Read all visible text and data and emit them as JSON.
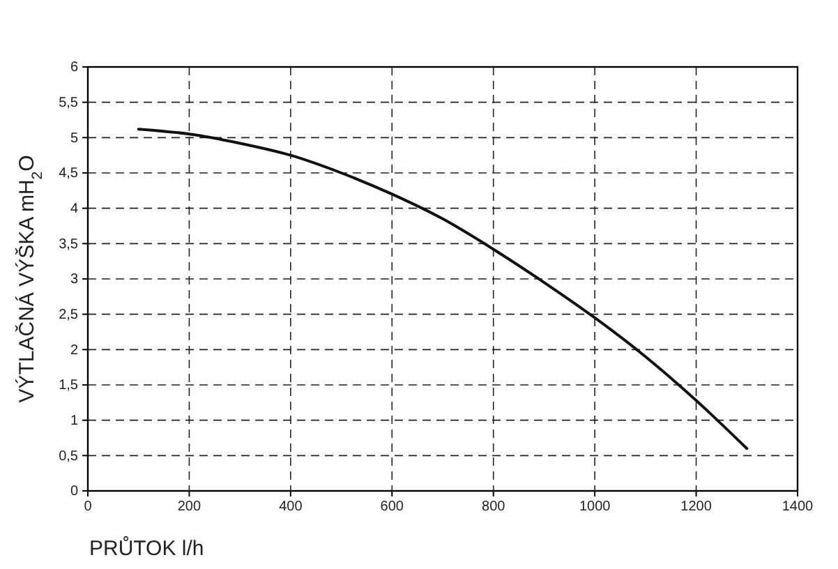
{
  "chart_data": {
    "type": "line",
    "xlabel": "PRŮTOK l/h",
    "ylabel": "VÝTLAČNÁ VÝŠKA mH$_{2}$O",
    "x": [
      100,
      200,
      300,
      400,
      500,
      600,
      700,
      800,
      900,
      1000,
      1100,
      1200,
      1300
    ],
    "series": [
      {
        "color": "#111111",
        "values": [
          5.12,
          5.05,
          4.92,
          4.75,
          4.5,
          4.2,
          3.85,
          3.42,
          2.95,
          2.45,
          1.9,
          1.28,
          0.6
        ]
      }
    ],
    "xlim": [
      0,
      1400
    ],
    "xticks": [
      0,
      200,
      400,
      600,
      800,
      1000,
      1200,
      1400
    ],
    "ylim": [
      0,
      6
    ],
    "yticks": [
      0,
      {
        "value": 0.5,
        "label": "0,5"
      },
      1,
      {
        "value": 1.5,
        "label": "1,5"
      },
      2,
      {
        "value": 2.5,
        "label": "2,5"
      },
      3,
      {
        "value": 3.5,
        "label": "3,5"
      },
      4,
      {
        "value": 4.5,
        "label": "4,5"
      },
      5,
      {
        "value": 5.5,
        "label": "5,5"
      },
      6
    ],
    "grid": true,
    "line_style": "solid",
    "marker": "none"
  }
}
